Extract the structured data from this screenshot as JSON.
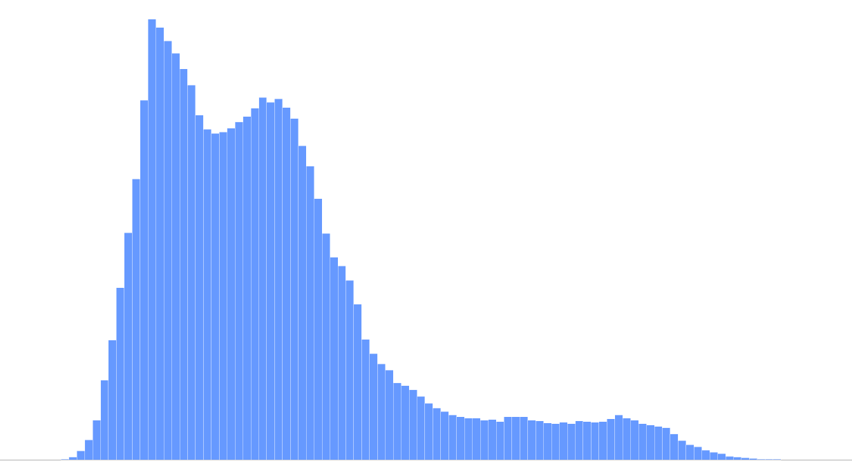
{
  "chart_data": {
    "type": "bar",
    "title": "",
    "xlabel": "",
    "ylabel": "",
    "grid": false,
    "legend": "none",
    "bar_color": "#6699ff",
    "bar_edge_color": "#ffffff",
    "baseline_color": "#b0b0b0",
    "ylim": [
      0,
      650
    ],
    "values": [
      0,
      0,
      0,
      0,
      0,
      1,
      4,
      13,
      29,
      58,
      117,
      176,
      253,
      334,
      413,
      529,
      648,
      636,
      616,
      598,
      575,
      551,
      507,
      486,
      480,
      482,
      488,
      497,
      505,
      517,
      533,
      526,
      531,
      518,
      502,
      462,
      432,
      384,
      333,
      298,
      285,
      264,
      229,
      177,
      156,
      141,
      132,
      113,
      109,
      103,
      93,
      83,
      76,
      71,
      66,
      63,
      61,
      61,
      58,
      59,
      56,
      63,
      63,
      63,
      58,
      57,
      54,
      53,
      55,
      53,
      57,
      56,
      55,
      56,
      60,
      66,
      61,
      58,
      53,
      51,
      49,
      47,
      38,
      28,
      22,
      19,
      14,
      11,
      9,
      5,
      4,
      3,
      2,
      1,
      1,
      1,
      0,
      0,
      0,
      0,
      0,
      0
    ]
  }
}
